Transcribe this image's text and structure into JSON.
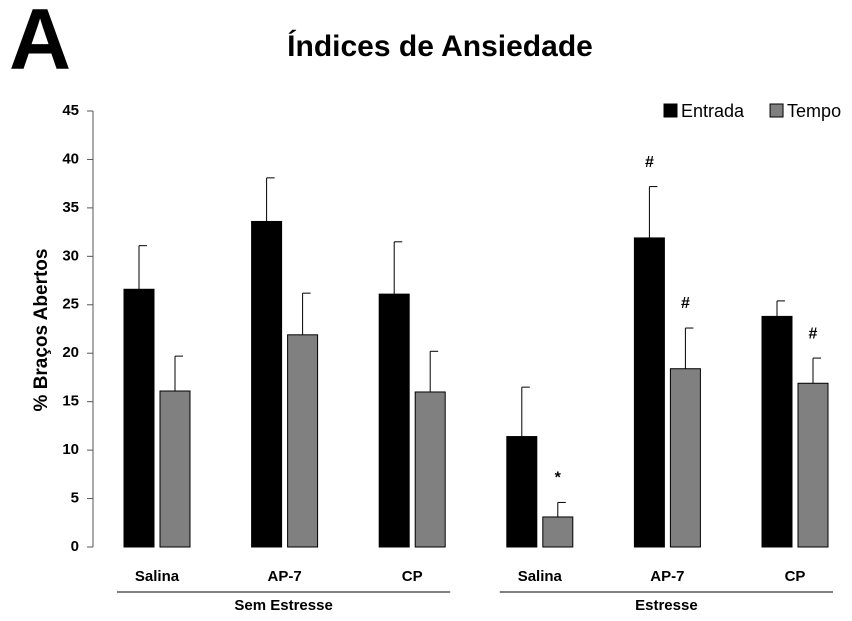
{
  "chart_data": {
    "type": "bar",
    "panel_label": "A",
    "title": "Índices de Ansiedade",
    "y_label": "% Braços Abertos",
    "groups": [
      {
        "name": "Sem Estresse",
        "categories": [
          "Salina",
          "AP-7",
          "CP"
        ]
      },
      {
        "name": "Estresse",
        "categories": [
          "Salina",
          "AP-7",
          "CP"
        ]
      }
    ],
    "series": [
      {
        "name": "Entrada",
        "color": "#000000",
        "values": [
          26.6,
          33.6,
          26.1,
          11.4,
          31.9,
          23.8
        ],
        "errors": [
          4.5,
          4.5,
          5.4,
          5.1,
          5.3,
          1.6
        ],
        "annotations": [
          null,
          null,
          null,
          null,
          "#",
          null
        ]
      },
      {
        "name": "Tempo",
        "color": "#808080",
        "values": [
          16.1,
          21.9,
          16.0,
          3.1,
          18.4,
          16.9
        ],
        "errors": [
          3.6,
          4.3,
          4.2,
          1.5,
          4.2,
          2.6
        ],
        "annotations": [
          null,
          null,
          null,
          "*",
          "#",
          "#"
        ]
      }
    ],
    "ylim": [
      0,
      45
    ],
    "yticks": [
      0,
      5,
      10,
      15,
      20,
      25,
      30,
      35,
      40,
      45
    ],
    "legend": "top-right"
  }
}
